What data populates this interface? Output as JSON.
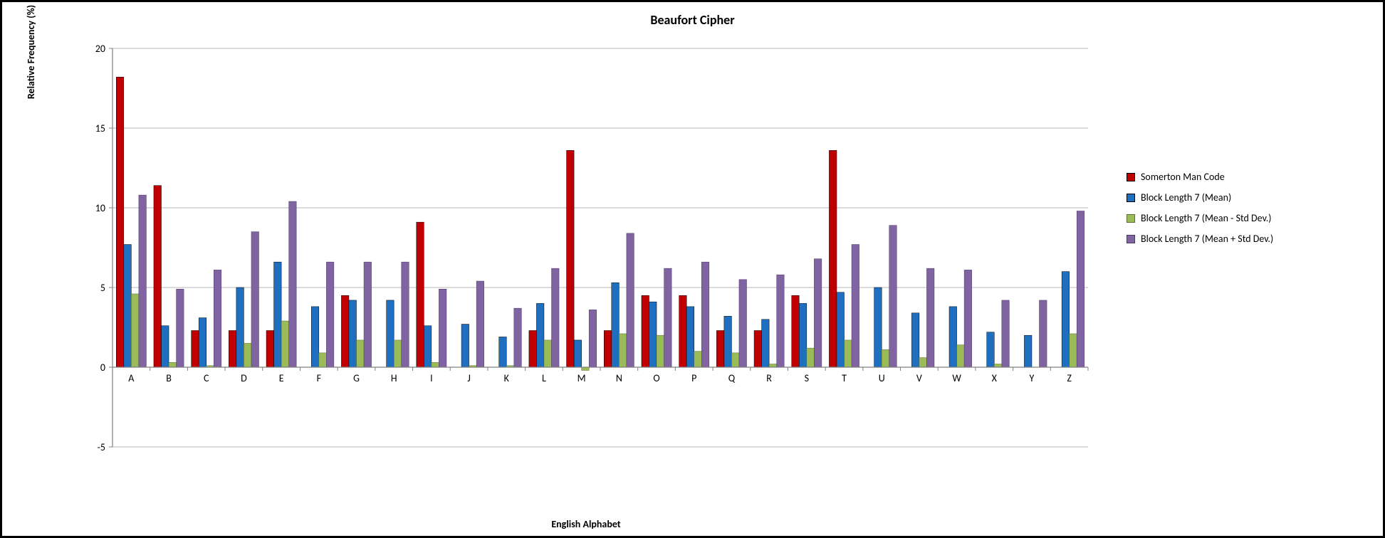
{
  "chart": {
    "type": "bar",
    "title": "Beaufort Cipher",
    "title_fontsize": 18,
    "title_fontweight": 700,
    "x_label": "English Alphabet",
    "y_label": "Relative Frequency (%)",
    "axis_label_fontsize": 14,
    "axis_label_fontweight": 700,
    "background_color": "#ffffff",
    "border_color": "#000000",
    "gridline_color": "#b7b7b7",
    "tick_font_size": 14,
    "tick_color": "#000000",
    "axis_color": "#808080",
    "ylim": [
      -5,
      20
    ],
    "ytick_step": 5,
    "categories": [
      "A",
      "B",
      "C",
      "D",
      "E",
      "F",
      "G",
      "H",
      "I",
      "J",
      "K",
      "L",
      "M",
      "N",
      "O",
      "P",
      "Q",
      "R",
      "S",
      "T",
      "U",
      "V",
      "W",
      "X",
      "Y",
      "Z"
    ],
    "bar_group_gap": 0.2,
    "bar_gap": 0.0,
    "series": [
      {
        "name": "Somerton Man Code",
        "color": "#c00000",
        "border_color": "#000000",
        "border_width": 0.5,
        "values": [
          18.2,
          11.4,
          2.3,
          2.3,
          2.3,
          0,
          4.5,
          0,
          9.1,
          0,
          0,
          2.3,
          13.6,
          2.3,
          4.5,
          4.5,
          2.3,
          2.3,
          4.5,
          13.6,
          0,
          0,
          0,
          0,
          0,
          0
        ]
      },
      {
        "name": "Block Length 7 (Mean)",
        "color": "#1f6fc1",
        "border_color": "#000000",
        "border_width": 0.5,
        "values": [
          7.7,
          2.6,
          3.1,
          5.0,
          6.6,
          3.8,
          4.2,
          4.2,
          2.6,
          2.7,
          1.9,
          4.0,
          1.7,
          5.3,
          4.1,
          3.8,
          3.2,
          3.0,
          4.0,
          4.7,
          5.0,
          3.4,
          3.8,
          2.2,
          2.0,
          6.0
        ]
      },
      {
        "name": "Block Length 7 (Mean - Std Dev.)",
        "color": "#9bbb59",
        "border_color": "#5a7030",
        "border_width": 0.5,
        "values": [
          4.6,
          0.3,
          0.1,
          1.5,
          2.9,
          0.9,
          1.7,
          1.7,
          0.3,
          0.1,
          0.1,
          1.7,
          -0.2,
          2.1,
          2.0,
          1.0,
          0.9,
          0.2,
          1.2,
          1.7,
          1.1,
          0.6,
          1.4,
          0.2,
          0.0,
          2.1
        ]
      },
      {
        "name": "Block Length 7 (Mean + Std Dev.)",
        "color": "#8064a2",
        "border_color": "#4b3766",
        "border_width": 0.5,
        "values": [
          10.8,
          4.9,
          6.1,
          8.5,
          10.4,
          6.6,
          6.6,
          6.6,
          4.9,
          5.4,
          3.7,
          6.2,
          3.6,
          8.4,
          6.2,
          6.6,
          5.5,
          5.8,
          6.8,
          7.7,
          8.9,
          6.2,
          6.1,
          4.2,
          4.2,
          9.8
        ]
      }
    ],
    "legend": {
      "position": "right",
      "font_size": 14
    }
  }
}
